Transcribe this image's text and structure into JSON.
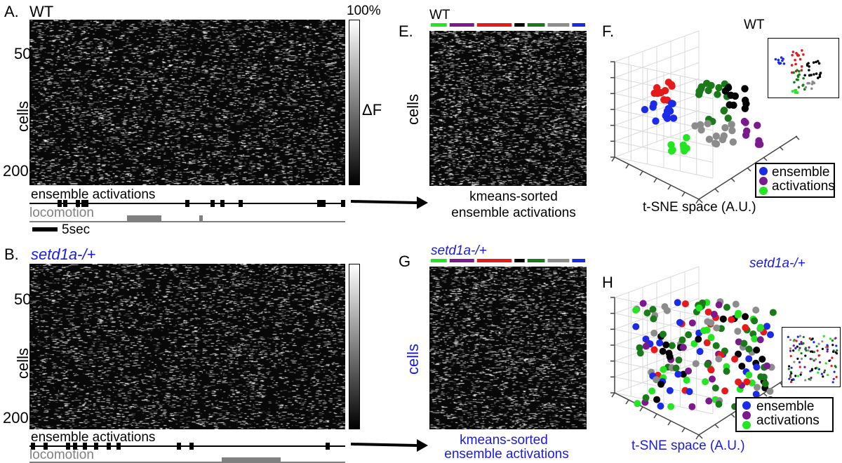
{
  "panels": {
    "A": {
      "letter": "A.",
      "genotype": "WT",
      "ytick_50": "50",
      "ytick_200": "200",
      "ylabel": "cells",
      "colorbar_top": "100%",
      "colorbar_label": "ΔF",
      "ensemble_label": "ensemble activations",
      "locomotion_label": "locomotion",
      "scalebar_label": "5sec"
    },
    "B": {
      "letter": "B.",
      "genotype": "setd1a-/+",
      "ytick_50": "50",
      "ytick_200": "200",
      "ylabel": "cells",
      "ensemble_label": "ensemble activations",
      "locomotion_label": "locomotion"
    },
    "E": {
      "letter": "E.",
      "genotype": "WT",
      "ylabel": "cells",
      "caption_line1": "kmeans-sorted",
      "caption_line2": "ensemble activations"
    },
    "F": {
      "letter": "F.",
      "genotype": "WT",
      "axis_label": "t-SNE space (A.U.)",
      "legend_line1": "ensemble",
      "legend_line2": "activations"
    },
    "G": {
      "letter": "G",
      "genotype": "setd1a-/+",
      "ylabel": "cells",
      "caption_line1": "kmeans-sorted",
      "caption_line2": "ensemble activations"
    },
    "H": {
      "letter": "H",
      "genotype": "setd1a-/+",
      "axis_label": "t-SNE space (A.U.)",
      "legend_line1": "ensemble",
      "legend_line2": "activations"
    }
  },
  "colors": {
    "cluster_green": "#22e622",
    "cluster_purple": "#7a1a8c",
    "cluster_red": "#e61a1a",
    "cluster_black": "#000000",
    "cluster_darkgreen": "#1a7a1a",
    "cluster_gray": "#8c8c8c",
    "cluster_blue": "#1a2ae6",
    "locomotion_bar": "#808080",
    "genotype_mutant_text": "#1a1ae6"
  }
}
